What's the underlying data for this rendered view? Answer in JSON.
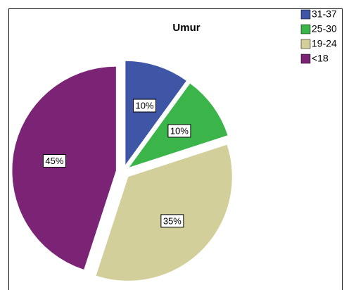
{
  "chart_data": {
    "type": "pie",
    "title": "Umur",
    "categories": [
      "31-37",
      "25-30",
      "19-24",
      "<18"
    ],
    "values": [
      10,
      10,
      35,
      45
    ],
    "value_labels": [
      "10%",
      "10%",
      "35%",
      "45%"
    ],
    "colors": [
      "#3f55a6",
      "#3bb54a",
      "#d3cf9a",
      "#7b2374"
    ],
    "legend": "top-right"
  }
}
